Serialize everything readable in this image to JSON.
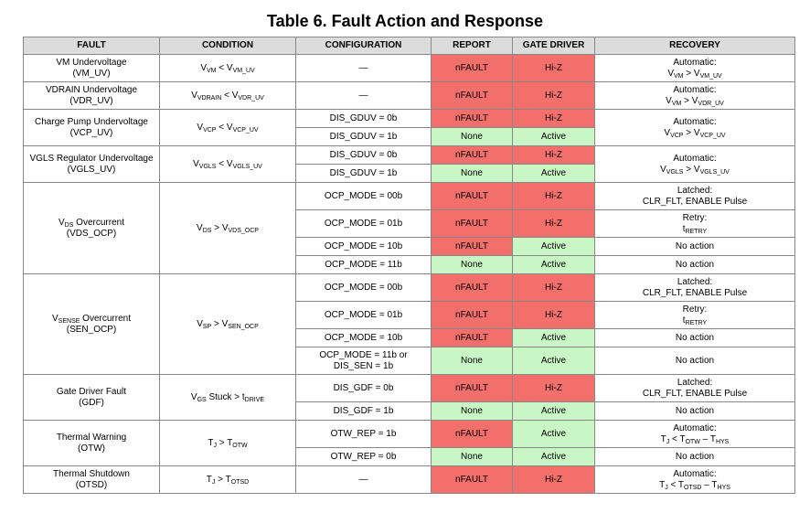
{
  "title": "Table 6. Fault Action and Response",
  "headers": [
    "FAULT",
    "CONDITION",
    "CONFIGURATION",
    "REPORT",
    "GATE DRIVER",
    "RECOVERY"
  ],
  "colors": {
    "fault_report": "#f36f6b",
    "no_fault": "#c9f6c5",
    "header": "#dcdcdc"
  },
  "rows": {
    "vm": {
      "fault_l1": "VM Undervoltage",
      "fault_l2": "(VM_UV)",
      "cond_a": "V",
      "cond_a_sub": "VM",
      "cond_op": " < ",
      "cond_b": "V",
      "cond_b_sub": "VM_UV",
      "config": "—",
      "report": "nFAULT",
      "gate": "Hi-Z",
      "rec_l1": "Automatic:",
      "rec_a": "V",
      "rec_a_sub": "VM",
      "rec_op": " > ",
      "rec_b": "V",
      "rec_b_sub": "VM_UV"
    },
    "vdrain": {
      "fault_l1": "VDRAIN Undervoltage",
      "fault_l2": "(VDR_UV)",
      "cond_a": "V",
      "cond_a_sub": "VDRAIN",
      "cond_op": " < ",
      "cond_b": "V",
      "cond_b_sub": "VDR_UV",
      "config": "—",
      "report": "nFAULT",
      "gate": "Hi-Z",
      "rec_l1": "Automatic:",
      "rec_a": "V",
      "rec_a_sub": "VM",
      "rec_op": " > ",
      "rec_b": "V",
      "rec_b_sub": "VDR_UV"
    },
    "vcp": {
      "fault_l1": "Charge Pump Undervoltage",
      "fault_l2": "(VCP_UV)",
      "cond_a": "V",
      "cond_a_sub": "VCP",
      "cond_op": " < ",
      "cond_b": "V",
      "cond_b_sub": "VCP_UV",
      "config_1": "DIS_GDUV = 0b",
      "report_1": "nFAULT",
      "gate_1": "Hi-Z",
      "config_2": "DIS_GDUV = 1b",
      "report_2": "None",
      "gate_2": "Active",
      "rec_l1": "Automatic:",
      "rec_a": "V",
      "rec_a_sub": "VCP",
      "rec_op": " > ",
      "rec_b": "V",
      "rec_b_sub": "VCP_UV"
    },
    "vgls": {
      "fault_l1": "VGLS Regulator Undervoltage",
      "fault_l2": "(VGLS_UV)",
      "cond_a": "V",
      "cond_a_sub": "VGLS",
      "cond_op": " < ",
      "cond_b": "V",
      "cond_b_sub": "VGLS_UV",
      "config_1": "DIS_GDUV = 0b",
      "report_1": "nFAULT",
      "gate_1": "Hi-Z",
      "config_2": "DIS_GDUV = 1b",
      "report_2": "None",
      "gate_2": "Active",
      "rec_l1": "Automatic:",
      "rec_a": "V",
      "rec_a_sub": "VGLS",
      "rec_op": " > ",
      "rec_b": "V",
      "rec_b_sub": "VGLS_UV"
    },
    "vds": {
      "fault_a": "V",
      "fault_a_sub": "DS",
      "fault_rest": " Overcurrent",
      "fault_l2": "(VDS_OCP)",
      "cond_a": "V",
      "cond_a_sub": "DS",
      "cond_op": " > ",
      "cond_b": "V",
      "cond_b_sub": "VDS_OCP",
      "config_1": "OCP_MODE = 00b",
      "report_1": "nFAULT",
      "gate_1": "Hi-Z",
      "rec_1_l1": "Latched:",
      "rec_1_l2": "CLR_FLT, ENABLE Pulse",
      "config_2": "OCP_MODE = 01b",
      "report_2": "nFAULT",
      "gate_2": "Hi-Z",
      "rec_2_l1": "Retry:",
      "rec_2_a": "t",
      "rec_2_a_sub": "RETRY",
      "config_3": "OCP_MODE = 10b",
      "report_3": "nFAULT",
      "gate_3": "Active",
      "rec_3": "No action",
      "config_4": "OCP_MODE = 11b",
      "report_4": "None",
      "gate_4": "Active",
      "rec_4": "No action"
    },
    "sense": {
      "fault_a": "V",
      "fault_a_sub": "SENSE",
      "fault_rest": " Overcurrent",
      "fault_l2": "(SEN_OCP)",
      "cond_a": "V",
      "cond_a_sub": "SP",
      "cond_op": " > ",
      "cond_b": "V",
      "cond_b_sub": "SEN_OCP",
      "config_1": "OCP_MODE = 00b",
      "report_1": "nFAULT",
      "gate_1": "Hi-Z",
      "rec_1_l1": "Latched:",
      "rec_1_l2": "CLR_FLT, ENABLE Pulse",
      "config_2": "OCP_MODE = 01b",
      "report_2": "nFAULT",
      "gate_2": "Hi-Z",
      "rec_2_l1": "Retry:",
      "rec_2_a": "t",
      "rec_2_a_sub": "RETRY",
      "config_3": "OCP_MODE = 10b",
      "report_3": "nFAULT",
      "gate_3": "Active",
      "rec_3": "No action",
      "config_4_l1": "OCP_MODE = 11b or",
      "config_4_l2": "DIS_SEN = 1b",
      "report_4": "None",
      "gate_4": "Active",
      "rec_4": "No action"
    },
    "gdf": {
      "fault_l1": "Gate Driver Fault",
      "fault_l2": "(GDF)",
      "cond_a": "V",
      "cond_a_sub": "GS",
      "cond_op": " Stuck > ",
      "cond_b": "t",
      "cond_b_sub": "DRIVE",
      "config_1": "DIS_GDF = 0b",
      "report_1": "nFAULT",
      "gate_1": "Hi-Z",
      "rec_1_l1": "Latched:",
      "rec_1_l2": "CLR_FLT, ENABLE Pulse",
      "config_2": "DIS_GDF = 1b",
      "report_2": "None",
      "gate_2": "Active",
      "rec_2": "No action"
    },
    "otw": {
      "fault_l1": "Thermal Warning",
      "fault_l2": "(OTW)",
      "cond_a": "T",
      "cond_a_sub": "J",
      "cond_op": " > ",
      "cond_b": "T",
      "cond_b_sub": "OTW",
      "config_1": "OTW_REP = 1b",
      "report_1": "nFAULT",
      "gate_1": "Active",
      "rec_1_l1": "Automatic:",
      "rec_1_a": "T",
      "rec_1_a_sub": "J",
      "rec_1_op": " < ",
      "rec_1_b": "T",
      "rec_1_b_sub": "OTW",
      "rec_1_op2": " – ",
      "rec_1_c": "T",
      "rec_1_c_sub": "HYS",
      "config_2": "OTW_REP = 0b",
      "report_2": "None",
      "gate_2": "Active",
      "rec_2": "No action"
    },
    "otsd": {
      "fault_l1": "Thermal Shutdown",
      "fault_l2": "(OTSD)",
      "cond_a": "T",
      "cond_a_sub": "J",
      "cond_op": " > ",
      "cond_b": "T",
      "cond_b_sub": "OTSD",
      "config": "—",
      "report": "nFAULT",
      "gate": "Hi-Z",
      "rec_l1": "Automatic:",
      "rec_a": "T",
      "rec_a_sub": "J",
      "rec_op": " < ",
      "rec_b": "T",
      "rec_b_sub": "OTSD",
      "rec_op2": " – ",
      "rec_c": "T",
      "rec_c_sub": "HYS"
    }
  }
}
